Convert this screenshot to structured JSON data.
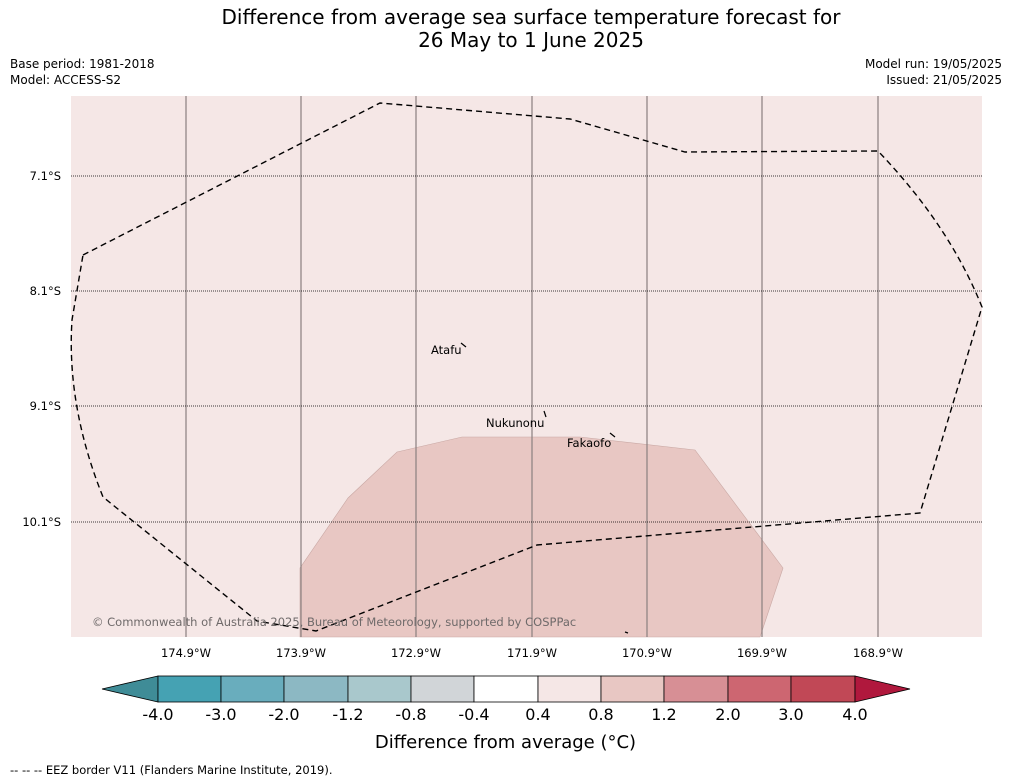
{
  "title_line1": "Difference from average sea surface temperature forecast for",
  "title_line2": "26 May to 1 June 2025",
  "base_period": "Base period: 1981-2018",
  "model": "Model: ACCESS-S2",
  "model_run": "Model run: 19/05/2025",
  "issued": "Issued: 21/05/2025",
  "lat_labels": [
    "7.1°S",
    "8.1°S",
    "9.1°S",
    "10.1°S"
  ],
  "lon_labels": [
    "174.9°W",
    "173.9°W",
    "172.9°W",
    "171.9°W",
    "170.9°W",
    "169.9°W",
    "168.9°W"
  ],
  "places": [
    "Atafu",
    "Nukunonu",
    "Fakaofo"
  ],
  "copyright": "© Commonwealth of Australia 2025, Bureau of Meteorology, supported by COSPPac",
  "colorbar": {
    "ticks": [
      "-4.0",
      "-3.0",
      "-2.0",
      "-1.2",
      "-0.8",
      "-0.4",
      "0.4",
      "0.8",
      "1.2",
      "2.0",
      "3.0",
      "4.0"
    ],
    "colors": [
      "#3f8c97",
      "#45a2b3",
      "#69adbd",
      "#8cb8c3",
      "#a9c8cc",
      "#d1d5d8",
      "#ffffff",
      "#f5e7e6",
      "#e8c7c3",
      "#d78f95",
      "#cd6671",
      "#c14856",
      "#b0183d"
    ],
    "title": "Difference from average (°C)"
  },
  "legend_note": "--  --  -- EEZ border V11 (Flanders Marine Institute, 2019).",
  "map_colors": {
    "background_anomaly": "#f5e7e6",
    "warm_anomaly_patch": "#e8c7c3"
  }
}
